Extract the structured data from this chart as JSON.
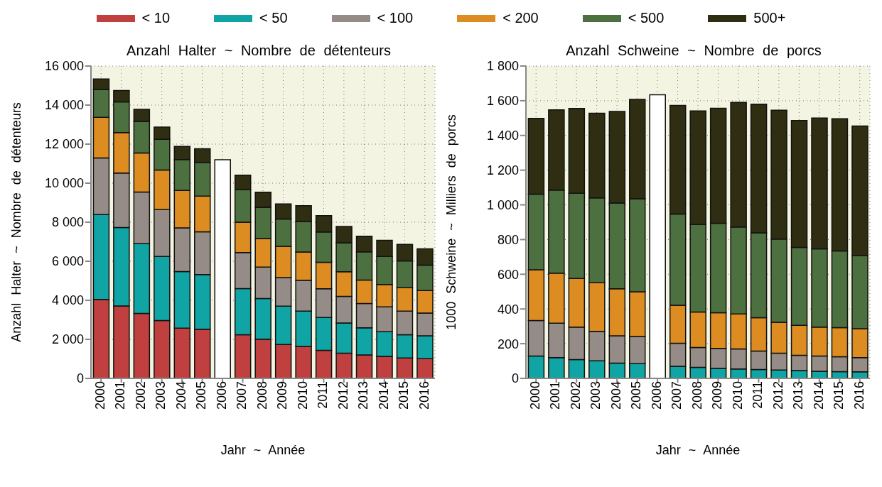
{
  "chart_data": [
    {
      "type": "bar",
      "title": "Anzahl Halter ~ Nombre de détenteurs",
      "xlabel": "Jahr ~ Année",
      "ylabel": "Anzahl Halter ~ Nombre de détenteurs",
      "stacked": true,
      "grid": true,
      "legend": "top",
      "categories": [
        "2000",
        "2001",
        "2002",
        "2003",
        "2004",
        "2005",
        "2006",
        "2007",
        "2008",
        "2009",
        "2010",
        "2011",
        "2012",
        "2013",
        "2014",
        "2015",
        "2016"
      ],
      "ylim": [
        0,
        16000
      ],
      "yticks": [
        0,
        {
          "value": 2000,
          "label": "2 000"
        },
        {
          "value": 4000,
          "label": "4 000"
        },
        {
          "value": 6000,
          "label": "6 000"
        },
        {
          "value": 8000,
          "label": "8 000"
        },
        {
          "value": 10000,
          "label": "10 000"
        },
        {
          "value": 12000,
          "label": "12 000"
        },
        {
          "value": 14000,
          "label": "14 000"
        },
        {
          "value": 16000,
          "label": "16 000"
        }
      ],
      "series": [
        {
          "name": "< 10",
          "color": "#c04040",
          "values": [
            4050,
            3710,
            3330,
            2960,
            2570,
            2520,
            null,
            2240,
            2010,
            1740,
            1640,
            1440,
            1290,
            1200,
            1130,
            1050,
            1010
          ]
        },
        {
          "name": "< 50",
          "color": "#10a4a4",
          "values": [
            4340,
            4020,
            3570,
            3290,
            2900,
            2800,
            null,
            2360,
            2080,
            1960,
            1810,
            1680,
            1550,
            1390,
            1260,
            1190,
            1170
          ]
        },
        {
          "name": "< 100",
          "color": "#958c87",
          "values": [
            2900,
            2790,
            2650,
            2400,
            2240,
            2190,
            null,
            1850,
            1610,
            1460,
            1580,
            1470,
            1360,
            1250,
            1270,
            1210,
            1170
          ]
        },
        {
          "name": "< 200",
          "color": "#dc8c20",
          "values": [
            2080,
            2070,
            2000,
            2020,
            1920,
            1830,
            null,
            1550,
            1460,
            1600,
            1440,
            1360,
            1260,
            1200,
            1150,
            1200,
            1150
          ]
        },
        {
          "name": "< 500",
          "color": "#4c7040",
          "values": [
            1420,
            1570,
            1610,
            1580,
            1580,
            1720,
            null,
            1670,
            1600,
            1400,
            1560,
            1550,
            1490,
            1440,
            1440,
            1370,
            1300
          ]
        },
        {
          "name": "500+",
          "color": "#302e12",
          "values": [
            550,
            590,
            620,
            620,
            670,
            700,
            null,
            740,
            780,
            780,
            820,
            840,
            830,
            800,
            820,
            840,
            840
          ]
        },
        {
          "color": "#ffffff",
          "values": [
            null,
            null,
            null,
            null,
            null,
            null,
            11200,
            null,
            null,
            null,
            null,
            null,
            null,
            null,
            null,
            null,
            null
          ]
        }
      ]
    },
    {
      "type": "bar",
      "title": "Anzahl Schweine ~ Nombre de porcs",
      "xlabel": "Jahr ~ Année",
      "ylabel": "1000 Schweine ~ Milliers de porcs",
      "stacked": true,
      "grid": true,
      "categories": [
        "2000",
        "2001",
        "2002",
        "2003",
        "2004",
        "2005",
        "2006",
        "2007",
        "2008",
        "2009",
        "2010",
        "2011",
        "2012",
        "2013",
        "2014",
        "2015",
        "2016"
      ],
      "ylim": [
        0,
        1800
      ],
      "yticks": [
        0,
        200,
        400,
        600,
        800,
        {
          "value": 1000,
          "label": "1 000"
        },
        {
          "value": 1200,
          "label": "1 200"
        },
        {
          "value": 1400,
          "label": "1 400"
        },
        {
          "value": 1600,
          "label": "1 600"
        },
        {
          "value": 1800,
          "label": "1 800"
        }
      ],
      "series": [
        {
          "name": "< 50",
          "color": "#10a4a4",
          "values": [
            129,
            120,
            108,
            101,
            88,
            85,
            null,
            70,
            63,
            58,
            54,
            51,
            48,
            45,
            41,
            39,
            38
          ]
        },
        {
          "name": "< 100",
          "color": "#958c87",
          "values": [
            204,
            198,
            188,
            170,
            157,
            156,
            null,
            133,
            115,
            115,
            116,
            107,
            97,
            88,
            88,
            86,
            82
          ]
        },
        {
          "name": "< 200",
          "color": "#dc8c20",
          "values": [
            293,
            288,
            280,
            280,
            271,
            258,
            null,
            218,
            205,
            205,
            201,
            192,
            178,
            173,
            167,
            168,
            166
          ]
        },
        {
          "name": "< 500",
          "color": "#4c7040",
          "values": [
            436,
            479,
            491,
            489,
            494,
            536,
            null,
            526,
            504,
            516,
            501,
            489,
            480,
            449,
            451,
            441,
            423
          ]
        },
        {
          "name": "500+",
          "color": "#302e12",
          "values": [
            436,
            462,
            489,
            488,
            528,
            573,
            null,
            626,
            654,
            663,
            718,
            741,
            742,
            731,
            753,
            762,
            745
          ]
        },
        {
          "color": "#ffffff",
          "values": [
            null,
            null,
            null,
            null,
            null,
            null,
            1634,
            null,
            null,
            null,
            null,
            null,
            null,
            null,
            null,
            null,
            null
          ]
        }
      ]
    }
  ]
}
